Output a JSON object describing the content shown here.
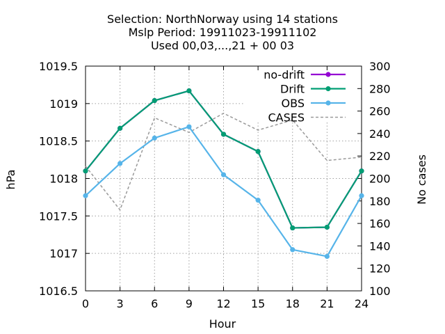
{
  "chart_data": {
    "type": "line",
    "title_lines": [
      "Selection: NorthNorway using    14 stations",
      "Mslp   Period: 19911023-19911102",
      "Used  00,03,...,21  + 00 03"
    ],
    "xlabel": "Hour",
    "ylabel": "hPa",
    "y2label": "No cases",
    "xlim": [
      0,
      24
    ],
    "ylim": [
      1016.5,
      1019.5
    ],
    "y2lim": [
      100,
      300
    ],
    "x_ticks": [
      "0",
      "3",
      "6",
      "9",
      "12",
      "15",
      "18",
      "21",
      "24"
    ],
    "y_ticks": [
      "1016.5",
      "1017",
      "1017.5",
      "1018",
      "1018.5",
      "1019",
      "1019.5"
    ],
    "y2_ticks": [
      "100",
      "120",
      "140",
      "160",
      "180",
      "200",
      "220",
      "240",
      "260",
      "280",
      "300"
    ],
    "grid": true,
    "legend_position": "top-right",
    "x": [
      0,
      3,
      6,
      9,
      12,
      15,
      18,
      21,
      24
    ],
    "series": [
      {
        "name": "no-drift",
        "axis": "y",
        "color": "#9400d3",
        "marker": "circle",
        "values": [
          1018.1,
          1018.67,
          1019.04,
          1019.17,
          1018.59,
          1018.36,
          1017.34,
          1017.35,
          1018.1
        ]
      },
      {
        "name": "Drift",
        "axis": "y",
        "color": "#009e73",
        "marker": "circle",
        "values": [
          1018.1,
          1018.67,
          1019.04,
          1019.17,
          1018.59,
          1018.36,
          1017.34,
          1017.35,
          1018.1
        ]
      },
      {
        "name": "OBS",
        "axis": "y",
        "color": "#56b4e9",
        "marker": "circle",
        "values": [
          1017.77,
          1018.2,
          1018.54,
          1018.69,
          1018.05,
          1017.71,
          1017.05,
          1016.96,
          1017.77
        ]
      },
      {
        "name": "CASES",
        "axis": "y2",
        "color": "#999999",
        "dashed": true,
        "values": [
          211,
          172,
          254,
          241,
          258,
          243,
          252,
          216,
          219
        ]
      }
    ]
  }
}
